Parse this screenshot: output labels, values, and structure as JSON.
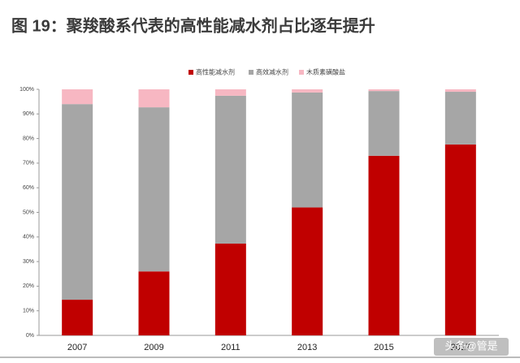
{
  "chart_data": {
    "type": "stacked_bar",
    "title": "图 19：聚羧酸系代表的高性能减水剂占比逐年提升",
    "categories": [
      "2007",
      "2009",
      "2011",
      "2013",
      "2015",
      "2017"
    ],
    "series": [
      {
        "name": "高性能减水剂",
        "color": "#c00000",
        "values": [
          14.5,
          26,
          37.3,
          52,
          73,
          77.6
        ]
      },
      {
        "name": "高效减水剂",
        "color": "#a6a6a6",
        "values": [
          79.5,
          66.7,
          60.1,
          46.7,
          26.3,
          21.4
        ]
      },
      {
        "name": "木质素磺酸盐",
        "color": "#f7b7c2",
        "values": [
          6,
          7.3,
          2.6,
          1.3,
          0.7,
          1
        ]
      }
    ],
    "ylim": [
      0,
      100
    ],
    "yticks": [
      {
        "value": 0,
        "label": "0%"
      },
      {
        "value": 10,
        "label": "10%"
      },
      {
        "value": 20,
        "label": "20%"
      },
      {
        "value": 30,
        "label": "30%"
      },
      {
        "value": 40,
        "label": "40%"
      },
      {
        "value": 50,
        "label": "50%"
      },
      {
        "value": 60,
        "label": "60%"
      },
      {
        "value": 70,
        "label": "70%"
      },
      {
        "value": 80,
        "label": "80%"
      },
      {
        "value": 90,
        "label": "90%"
      },
      {
        "value": 100,
        "label": "100%"
      }
    ],
    "legend": "top",
    "watermark": "头条@管是"
  }
}
